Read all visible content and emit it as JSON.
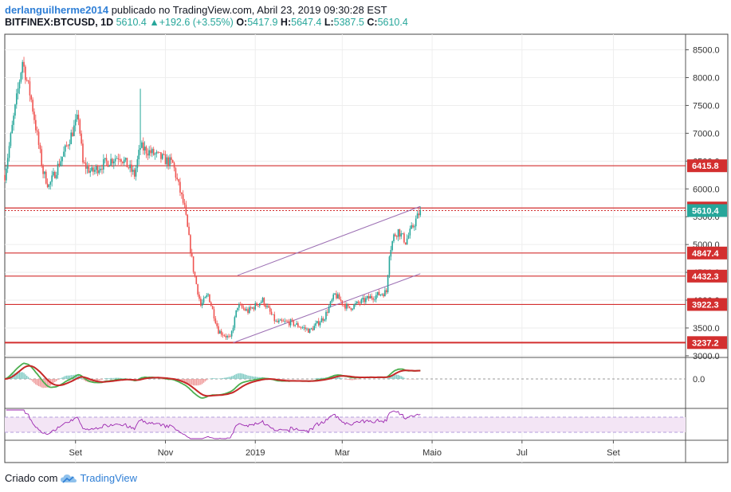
{
  "header": {
    "author": "derlanguilherme2014",
    "published_text": "publicado no TradingView.com, Abril 23, 2019 09:30:28 EST",
    "symbol": "BITFINEX:BTCUSD, 1D",
    "last": "5610.4",
    "change_arrow": "▲",
    "change": "+192.6 (+3.55%)",
    "o_label": "O:",
    "o": "5417.9",
    "h_label": "H:",
    "h": "5647.4",
    "l_label": "L:",
    "l": "5387.5",
    "c_label": "C:",
    "c": "5610.4"
  },
  "footer": {
    "created_with": "Criado com",
    "brand": "TradingView",
    "icon": "tradingview-cloud-icon"
  },
  "colors": {
    "up": "#26a69a",
    "down": "#ef5350",
    "level": "#d32f2f",
    "channel": "#9c6fb3",
    "macd": "#4caf50",
    "signal": "#c62828",
    "rsi": "#9c27b0"
  },
  "chart_data": {
    "type": "candlestick",
    "x_ticks": [
      "Set",
      "Nov",
      "2019",
      "Mar",
      "Maio",
      "Jul",
      "Set"
    ],
    "y_ticks": [
      3000,
      3500,
      4000,
      4500,
      5000,
      5500,
      6000,
      6500,
      7000,
      7500,
      8000,
      8500
    ],
    "y_tick_labels": [
      "3000.0",
      "3500.0",
      "4000.0",
      "4500.0",
      "5000.0",
      "5500.0",
      "6000.0",
      "6500.0",
      "7000.0",
      "7500.0",
      "8000.0",
      "8500.0"
    ],
    "ylim": [
      2970,
      8780
    ],
    "price_path": [
      [
        "2018-07-15",
        6250
      ],
      [
        "2018-07-27",
        8300
      ],
      [
        "2018-08-02",
        7600
      ],
      [
        "2018-08-10",
        6300
      ],
      [
        "2018-08-14",
        6050
      ],
      [
        "2018-08-25",
        6700
      ],
      [
        "2018-09-03",
        7300
      ],
      [
        "2018-09-06",
        6450
      ],
      [
        "2018-09-12",
        6300
      ],
      [
        "2018-09-20",
        6450
      ],
      [
        "2018-10-01",
        6600
      ],
      [
        "2018-10-11",
        6250
      ],
      [
        "2018-10-15",
        6750
      ],
      [
        "2018-11-06",
        6450
      ],
      [
        "2018-11-14",
        5650
      ],
      [
        "2018-11-20",
        4550
      ],
      [
        "2018-11-25",
        3900
      ],
      [
        "2018-11-30",
        4100
      ],
      [
        "2018-12-07",
        3450
      ],
      [
        "2018-12-15",
        3300
      ],
      [
        "2018-12-20",
        3900
      ],
      [
        "2018-12-27",
        3800
      ],
      [
        "2019-01-06",
        4000
      ],
      [
        "2019-01-15",
        3600
      ],
      [
        "2019-01-25",
        3600
      ],
      [
        "2019-02-07",
        3450
      ],
      [
        "2019-02-17",
        3700
      ],
      [
        "2019-02-24",
        4100
      ],
      [
        "2019-03-05",
        3850
      ],
      [
        "2019-03-20",
        4050
      ],
      [
        "2019-03-31",
        4150
      ],
      [
        "2019-04-02",
        4850
      ],
      [
        "2019-04-05",
        5150
      ],
      [
        "2019-04-08",
        5250
      ],
      [
        "2019-04-13",
        5050
      ],
      [
        "2019-04-23",
        5610
      ]
    ],
    "spikes": [
      {
        "date": "2018-10-15",
        "high": 7800
      }
    ],
    "levels": [
      {
        "label": "6415.8",
        "value": 6415.8
      },
      {
        "label": "5656.4",
        "value": 5656.4
      },
      {
        "label": "4847.4",
        "value": 4847.4
      },
      {
        "label": "4432.3",
        "value": 4432.3
      },
      {
        "label": "3922.3",
        "value": 3922.3
      },
      {
        "label": "3237.2",
        "value": 3237.2
      }
    ],
    "last_price": {
      "label": "5610.4",
      "value": 5610.4
    },
    "channel": [
      {
        "from": [
          "2018-12-17",
          3235
        ],
        "to": [
          "2019-04-23",
          4475
        ]
      },
      {
        "from": [
          "2018-12-20",
          4445
        ],
        "to": [
          "2019-04-23",
          5685
        ]
      }
    ],
    "macd": {
      "zero_label": "0.0"
    }
  }
}
